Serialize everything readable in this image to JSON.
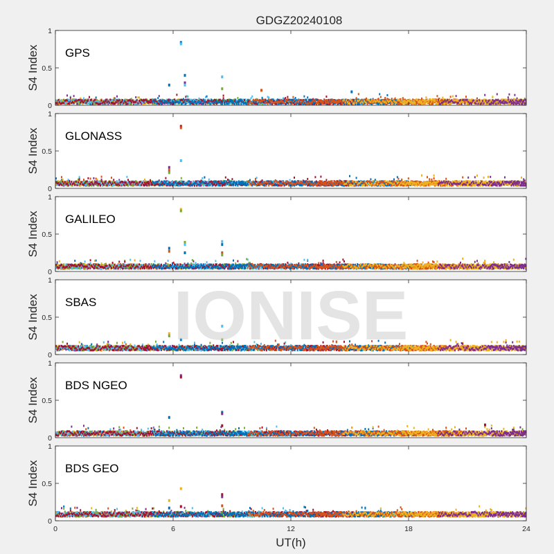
{
  "chart_data": {
    "type": "scatter",
    "title": "GDGZ20240108",
    "xlabel": "UT(h)",
    "ylabel": "S4 Index",
    "xlim": [
      0,
      24
    ],
    "ylim": [
      0,
      1
    ],
    "xticks": [
      "0",
      "6",
      "12",
      "18",
      "24"
    ],
    "yticks": [
      "0",
      "0.5",
      "1"
    ],
    "grid": false,
    "watermark": "IONISE",
    "series_colors": [
      "#0072BD",
      "#D95319",
      "#EDB120",
      "#7E2F8E",
      "#77AC30",
      "#4DBEEE",
      "#A2142F"
    ],
    "panels": [
      {
        "label": "GPS",
        "baseline": 0.06,
        "spikes": [
          {
            "x": 5.8,
            "y": 0.27,
            "color": "#0072BD"
          },
          {
            "x": 6.4,
            "y": 0.84,
            "color": "#0072BD"
          },
          {
            "x": 6.4,
            "y": 0.82,
            "color": "#4DBEEE"
          },
          {
            "x": 6.6,
            "y": 0.4,
            "color": "#0072BD"
          },
          {
            "x": 6.6,
            "y": 0.3,
            "color": "#7E2F8E"
          },
          {
            "x": 6.6,
            "y": 0.27,
            "color": "#4DBEEE"
          },
          {
            "x": 8.5,
            "y": 0.38,
            "color": "#4DBEEE"
          },
          {
            "x": 8.5,
            "y": 0.22,
            "color": "#77AC30"
          },
          {
            "x": 10.5,
            "y": 0.2,
            "color": "#D95319"
          },
          {
            "x": 15.1,
            "y": 0.18,
            "color": "#0072BD"
          }
        ]
      },
      {
        "label": "GLONASS",
        "baseline": 0.08,
        "spikes": [
          {
            "x": 5.8,
            "y": 0.28,
            "color": "#7E2F8E"
          },
          {
            "x": 5.8,
            "y": 0.24,
            "color": "#D95319"
          },
          {
            "x": 5.8,
            "y": 0.21,
            "color": "#77AC30"
          },
          {
            "x": 6.4,
            "y": 0.83,
            "color": "#A2142F"
          },
          {
            "x": 6.4,
            "y": 0.81,
            "color": "#D95319"
          },
          {
            "x": 6.4,
            "y": 0.37,
            "color": "#4DBEEE"
          }
        ]
      },
      {
        "label": "GALILEO",
        "baseline": 0.08,
        "spikes": [
          {
            "x": 5.8,
            "y": 0.31,
            "color": "#0072BD"
          },
          {
            "x": 5.8,
            "y": 0.27,
            "color": "#D95319"
          },
          {
            "x": 6.4,
            "y": 0.83,
            "color": "#EDB120"
          },
          {
            "x": 6.4,
            "y": 0.81,
            "color": "#77AC30"
          },
          {
            "x": 6.6,
            "y": 0.39,
            "color": "#77AC30"
          },
          {
            "x": 6.6,
            "y": 0.36,
            "color": "#4DBEEE"
          },
          {
            "x": 6.6,
            "y": 0.25,
            "color": "#0072BD"
          },
          {
            "x": 8.5,
            "y": 0.4,
            "color": "#4DBEEE"
          },
          {
            "x": 8.5,
            "y": 0.36,
            "color": "#0072BD"
          },
          {
            "x": 8.5,
            "y": 0.25,
            "color": "#D95319"
          },
          {
            "x": 8.5,
            "y": 0.22,
            "color": "#77AC30"
          }
        ]
      },
      {
        "label": "SBAS",
        "baseline": 0.1,
        "spikes": [
          {
            "x": 5.8,
            "y": 0.28,
            "color": "#EDB120"
          },
          {
            "x": 5.8,
            "y": 0.25,
            "color": "#77AC30"
          },
          {
            "x": 6.4,
            "y": 0.2,
            "color": "#0072BD"
          },
          {
            "x": 8.5,
            "y": 0.38,
            "color": "#4DBEEE"
          },
          {
            "x": 8.5,
            "y": 0.2,
            "color": "#77AC30"
          }
        ]
      },
      {
        "label": "BDS NGEO",
        "baseline": 0.07,
        "spikes": [
          {
            "x": 5.8,
            "y": 0.27,
            "color": "#0072BD"
          },
          {
            "x": 6.4,
            "y": 0.83,
            "color": "#7E2F8E"
          },
          {
            "x": 6.4,
            "y": 0.81,
            "color": "#A2142F"
          },
          {
            "x": 8.5,
            "y": 0.34,
            "color": "#0072BD"
          },
          {
            "x": 8.5,
            "y": 0.32,
            "color": "#7E2F8E"
          },
          {
            "x": 8.5,
            "y": 0.16,
            "color": "#A2142F"
          },
          {
            "x": 21.9,
            "y": 0.17,
            "color": "#A2142F"
          }
        ]
      },
      {
        "label": "BDS GEO",
        "baseline": 0.1,
        "spikes": [
          {
            "x": 5.8,
            "y": 0.27,
            "color": "#EDB120"
          },
          {
            "x": 5.8,
            "y": 0.17,
            "color": "#0072BD"
          },
          {
            "x": 6.4,
            "y": 0.43,
            "color": "#EDB120"
          },
          {
            "x": 6.4,
            "y": 0.19,
            "color": "#A2142F"
          },
          {
            "x": 8.5,
            "y": 0.35,
            "color": "#A2142F"
          },
          {
            "x": 8.5,
            "y": 0.32,
            "color": "#7E2F8E"
          },
          {
            "x": 8.5,
            "y": 0.2,
            "color": "#D95319"
          }
        ]
      }
    ]
  }
}
